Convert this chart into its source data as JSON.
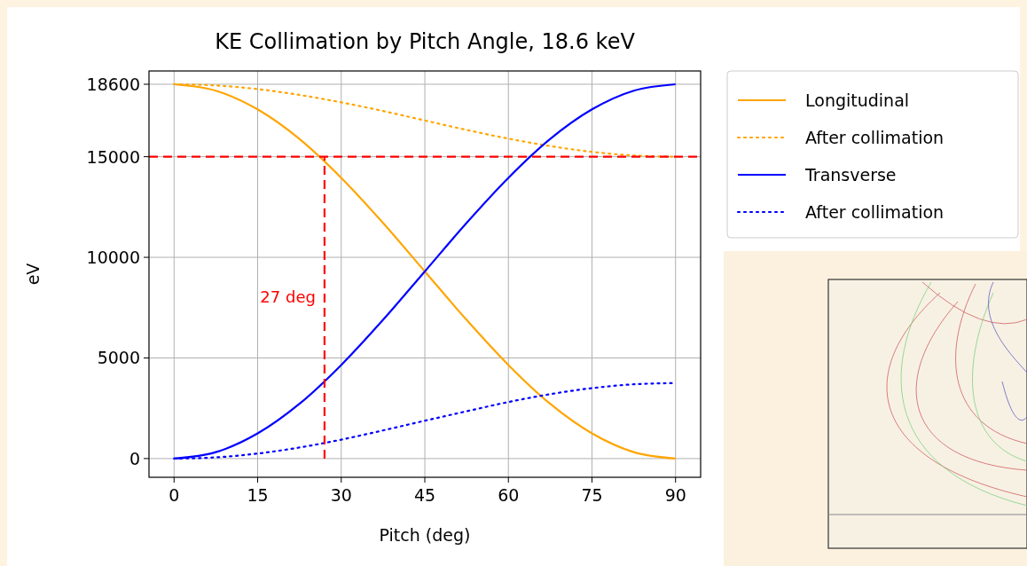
{
  "chart_data": {
    "type": "line",
    "title": "KE Collimation by Pitch Angle, 18.6 keV",
    "xlabel": "Pitch (deg)",
    "ylabel": "eV",
    "x": [
      0,
      7.5,
      15,
      22.5,
      30,
      37.5,
      45,
      52.5,
      60,
      67.5,
      75,
      82.5,
      90
    ],
    "series": [
      {
        "name": "Longitudinal",
        "color": "#ffa500",
        "line_style": "solid",
        "values": [
          18600,
          18280,
          17350,
          15880,
          13950,
          11710,
          9300,
          6890,
          4650,
          2720,
          1250,
          320,
          0
        ]
      },
      {
        "name": "After collimation",
        "color": "#ffa500",
        "line_style": "dotted",
        "values": [
          18600,
          18540,
          18360,
          18070,
          17700,
          17270,
          16800,
          16330,
          15900,
          15530,
          15240,
          15060,
          15000
        ]
      },
      {
        "name": "Transverse",
        "color": "#0000ff",
        "line_style": "solid",
        "values": [
          0,
          320,
          1250,
          2720,
          4650,
          6890,
          9300,
          11710,
          13950,
          15880,
          17350,
          18280,
          18600
        ]
      },
      {
        "name": "After collimation",
        "color": "#0000ff",
        "line_style": "dotted",
        "values": [
          0,
          60,
          250,
          550,
          940,
          1400,
          1880,
          2350,
          2810,
          3200,
          3500,
          3690,
          3750
        ]
      },
      {
        "color": "#ff0000",
        "line_style": "dashed",
        "x": [
          27,
          27
        ],
        "values": [
          0,
          15000
        ]
      }
    ],
    "ref_lines": [
      {
        "axis": "y",
        "value": 15000,
        "color": "#ff0000",
        "line_style": "dashed"
      }
    ],
    "annotations": [
      {
        "text": "27 deg",
        "x": 27,
        "y": 8000
      }
    ],
    "xlim": [
      -4.5,
      94.5
    ],
    "ylim": [
      -930,
      19260
    ],
    "xticks": [
      0,
      15,
      30,
      45,
      60,
      75,
      90
    ],
    "yticks": [
      0,
      5000,
      10000,
      15000,
      18600
    ],
    "grid": true,
    "legend": "top right",
    "marker": "none"
  }
}
